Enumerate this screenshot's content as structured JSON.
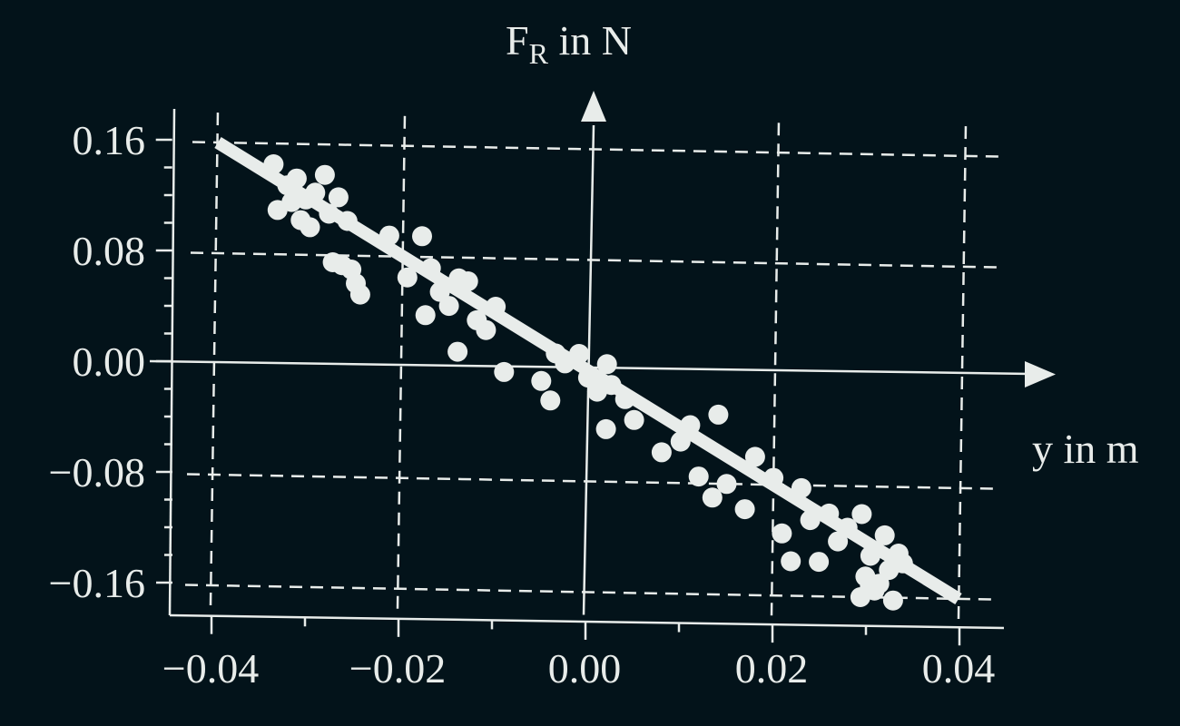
{
  "colors": {
    "background": "#03131a",
    "foreground": "#e8ecea"
  },
  "chart_data": {
    "type": "scatter",
    "title": "",
    "xlabel": "y in m",
    "ylabel": {
      "main": "F",
      "sub": "R",
      "rest": " in N"
    },
    "xlim": [
      -0.04,
      0.04
    ],
    "ylim": [
      -0.16,
      0.16
    ],
    "x_ticks": [
      -0.04,
      -0.02,
      0.0,
      0.02,
      0.04
    ],
    "x_tick_labels": [
      "−0.04",
      "−0.02",
      "0.00",
      "0.02",
      "0.04"
    ],
    "y_ticks": [
      0.16,
      0.08,
      0.0,
      -0.08,
      -0.16
    ],
    "y_tick_labels": [
      "0.16",
      "0.08",
      "0.00",
      "−0.08",
      "−0.16"
    ],
    "grid": true,
    "trend_line": {
      "x": [
        -0.04,
        0.04
      ],
      "y": [
        0.16,
        -0.16
      ]
    },
    "series": [
      {
        "points": [
          [
            -0.034,
            0.145
          ],
          [
            -0.0325,
            0.13
          ],
          [
            -0.0315,
            0.135
          ],
          [
            -0.0305,
            0.12
          ],
          [
            -0.031,
            0.105
          ],
          [
            -0.0335,
            0.112
          ],
          [
            -0.032,
            0.118
          ],
          [
            -0.03,
            0.1
          ],
          [
            -0.0295,
            0.125
          ],
          [
            -0.0285,
            0.138
          ],
          [
            -0.027,
            0.122
          ],
          [
            -0.026,
            0.105
          ],
          [
            -0.028,
            0.11
          ],
          [
            -0.0275,
            0.075
          ],
          [
            -0.0265,
            0.073
          ],
          [
            -0.0255,
            0.07
          ],
          [
            -0.025,
            0.06
          ],
          [
            -0.0245,
            0.052
          ],
          [
            -0.0215,
            0.095
          ],
          [
            -0.0195,
            0.065
          ],
          [
            -0.018,
            0.095
          ],
          [
            -0.017,
            0.072
          ],
          [
            -0.016,
            0.055
          ],
          [
            -0.015,
            0.045
          ],
          [
            -0.0175,
            0.038
          ],
          [
            -0.014,
            0.065
          ],
          [
            -0.013,
            0.063
          ],
          [
            -0.012,
            0.035
          ],
          [
            -0.011,
            0.028
          ],
          [
            -0.01,
            0.045
          ],
          [
            -0.014,
            0.012
          ],
          [
            -0.009,
            -0.002
          ],
          [
            -0.005,
            -0.008
          ],
          [
            -0.0035,
            0.012
          ],
          [
            -0.0025,
            0.005
          ],
          [
            -0.001,
            0.012
          ],
          [
            -0.004,
            -0.022
          ],
          [
            0.0,
            -0.005
          ],
          [
            0.001,
            -0.015
          ],
          [
            0.002,
            0.005
          ],
          [
            0.0025,
            -0.01
          ],
          [
            0.004,
            -0.02
          ],
          [
            0.002,
            -0.042
          ],
          [
            0.005,
            -0.035
          ],
          [
            0.008,
            -0.058
          ],
          [
            0.01,
            -0.05
          ],
          [
            0.011,
            -0.038
          ],
          [
            0.012,
            -0.075
          ],
          [
            0.014,
            -0.03
          ],
          [
            0.015,
            -0.08
          ],
          [
            0.0135,
            -0.09
          ],
          [
            0.017,
            -0.098
          ],
          [
            0.018,
            -0.06
          ],
          [
            0.02,
            -0.075
          ],
          [
            0.021,
            -0.115
          ],
          [
            0.023,
            -0.082
          ],
          [
            0.022,
            -0.135
          ],
          [
            0.024,
            -0.105
          ],
          [
            0.025,
            -0.135
          ],
          [
            0.026,
            -0.1
          ],
          [
            0.027,
            -0.12
          ],
          [
            0.028,
            -0.11
          ],
          [
            0.0295,
            -0.1
          ],
          [
            0.03,
            -0.145
          ],
          [
            0.0305,
            -0.13
          ],
          [
            0.031,
            -0.155
          ],
          [
            0.032,
            -0.115
          ],
          [
            0.0325,
            -0.14
          ],
          [
            0.0335,
            -0.128
          ],
          [
            0.034,
            -0.135
          ],
          [
            0.0295,
            -0.16
          ],
          [
            0.0315,
            -0.15
          ],
          [
            0.033,
            -0.162
          ],
          [
            0.0305,
            -0.152
          ]
        ]
      }
    ]
  }
}
